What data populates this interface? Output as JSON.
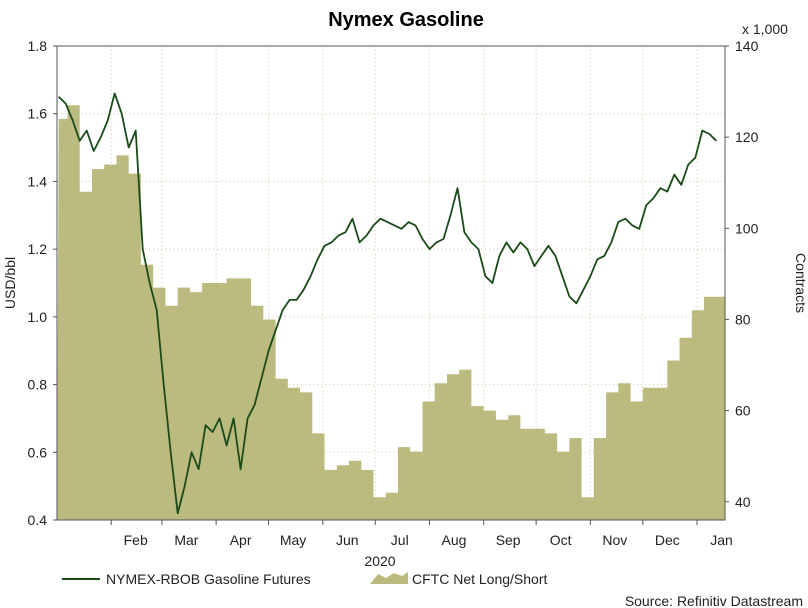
{
  "chart_data": {
    "type": "line",
    "title": "Nymex Gasoline",
    "ylabel_left": "USD/bbl",
    "ylabel_right": "Contracts",
    "right_unit_label": "x 1,000",
    "xlabel": "2020",
    "x_ticks": [
      "Feb",
      "Mar",
      "Apr",
      "May",
      "Jun",
      "Jul",
      "Aug",
      "Sep",
      "Oct",
      "Nov",
      "Dec",
      "Jan"
    ],
    "ylim_left": [
      0.4,
      1.8
    ],
    "yticks_left": [
      "0.4",
      "0.6",
      "0.8",
      "1.0",
      "1.2",
      "1.4",
      "1.6",
      "1.8"
    ],
    "ylim_right": [
      36.0,
      140.0
    ],
    "yticks_right": [
      "40",
      "60",
      "80",
      "100",
      "120",
      "140"
    ],
    "grid": true,
    "legend_position": "bottom",
    "source": "Source: Refinitiv Datastream",
    "colors": {
      "line": "#1b4a1b",
      "area": "#bcbb7f",
      "grid": "#c8c8a0"
    },
    "series": [
      {
        "name": "NYMEX-RBOB Gasoline Futures",
        "kind": "line",
        "axis": "left",
        "x": [
          "2020-01-02",
          "2020-01-06",
          "2020-01-10",
          "2020-01-14",
          "2020-01-18",
          "2020-01-22",
          "2020-01-26",
          "2020-01-30",
          "2020-02-03",
          "2020-02-07",
          "2020-02-11",
          "2020-02-15",
          "2020-02-19",
          "2020-02-23",
          "2020-02-27",
          "2020-03-02",
          "2020-03-06",
          "2020-03-10",
          "2020-03-14",
          "2020-03-18",
          "2020-03-22",
          "2020-03-26",
          "2020-03-30",
          "2020-04-03",
          "2020-04-07",
          "2020-04-11",
          "2020-04-15",
          "2020-04-19",
          "2020-04-23",
          "2020-04-27",
          "2020-05-01",
          "2020-05-05",
          "2020-05-09",
          "2020-05-13",
          "2020-05-17",
          "2020-05-21",
          "2020-05-25",
          "2020-05-29",
          "2020-06-02",
          "2020-06-06",
          "2020-06-10",
          "2020-06-14",
          "2020-06-18",
          "2020-06-22",
          "2020-06-26",
          "2020-06-30",
          "2020-07-04",
          "2020-07-08",
          "2020-07-12",
          "2020-07-16",
          "2020-07-20",
          "2020-07-24",
          "2020-07-28",
          "2020-08-01",
          "2020-08-05",
          "2020-08-09",
          "2020-08-13",
          "2020-08-17",
          "2020-08-21",
          "2020-08-25",
          "2020-08-29",
          "2020-09-02",
          "2020-09-06",
          "2020-09-10",
          "2020-09-14",
          "2020-09-18",
          "2020-09-22",
          "2020-09-26",
          "2020-09-30",
          "2020-10-04",
          "2020-10-08",
          "2020-10-12",
          "2020-10-16",
          "2020-10-20",
          "2020-10-24",
          "2020-10-28",
          "2020-11-01",
          "2020-11-05",
          "2020-11-09",
          "2020-11-13",
          "2020-11-17",
          "2020-11-21",
          "2020-11-25",
          "2020-11-29",
          "2020-12-03",
          "2020-12-07",
          "2020-12-11",
          "2020-12-15",
          "2020-12-19",
          "2020-12-23",
          "2020-12-27",
          "2020-12-31",
          "2021-01-04",
          "2021-01-08",
          "2021-01-12"
        ],
        "values": [
          1.65,
          1.63,
          1.58,
          1.52,
          1.55,
          1.49,
          1.53,
          1.58,
          1.66,
          1.6,
          1.5,
          1.55,
          1.2,
          1.1,
          1.02,
          0.8,
          0.6,
          0.42,
          0.5,
          0.6,
          0.55,
          0.68,
          0.66,
          0.7,
          0.62,
          0.7,
          0.55,
          0.7,
          0.74,
          0.82,
          0.9,
          0.96,
          1.02,
          1.05,
          1.05,
          1.08,
          1.12,
          1.17,
          1.21,
          1.22,
          1.24,
          1.25,
          1.29,
          1.22,
          1.24,
          1.27,
          1.29,
          1.28,
          1.27,
          1.26,
          1.28,
          1.27,
          1.23,
          1.2,
          1.22,
          1.23,
          1.3,
          1.38,
          1.25,
          1.22,
          1.2,
          1.12,
          1.1,
          1.18,
          1.22,
          1.19,
          1.22,
          1.2,
          1.15,
          1.18,
          1.21,
          1.18,
          1.12,
          1.06,
          1.04,
          1.08,
          1.12,
          1.17,
          1.18,
          1.22,
          1.28,
          1.29,
          1.27,
          1.26,
          1.33,
          1.35,
          1.38,
          1.37,
          1.42,
          1.39,
          1.45,
          1.47,
          1.55,
          1.54,
          1.52
        ]
      },
      {
        "name": "CFTC Net Long/Short",
        "kind": "area",
        "axis": "right",
        "x": [
          "2020-01-02",
          "2020-01-07",
          "2020-01-14",
          "2020-01-21",
          "2020-01-28",
          "2020-02-04",
          "2020-02-11",
          "2020-02-18",
          "2020-02-25",
          "2020-03-03",
          "2020-03-10",
          "2020-03-17",
          "2020-03-24",
          "2020-03-31",
          "2020-04-07",
          "2020-04-14",
          "2020-04-21",
          "2020-04-28",
          "2020-05-05",
          "2020-05-12",
          "2020-05-19",
          "2020-05-26",
          "2020-06-02",
          "2020-06-09",
          "2020-06-16",
          "2020-06-23",
          "2020-06-30",
          "2020-07-07",
          "2020-07-14",
          "2020-07-21",
          "2020-07-28",
          "2020-08-04",
          "2020-08-11",
          "2020-08-18",
          "2020-08-25",
          "2020-09-01",
          "2020-09-08",
          "2020-09-15",
          "2020-09-22",
          "2020-09-29",
          "2020-10-06",
          "2020-10-13",
          "2020-10-20",
          "2020-10-27",
          "2020-11-03",
          "2020-11-10",
          "2020-11-17",
          "2020-11-24",
          "2020-12-01",
          "2020-12-08",
          "2020-12-15",
          "2020-12-22",
          "2020-12-29",
          "2021-01-05",
          "2021-01-12"
        ],
        "values": [
          124,
          127,
          108,
          113,
          114,
          116,
          112,
          92,
          87,
          83,
          87,
          86,
          88,
          88,
          89,
          89,
          83,
          80,
          67,
          65,
          64,
          55,
          47,
          48,
          49,
          47,
          41,
          42,
          52,
          51,
          62,
          66,
          68,
          69,
          61,
          60,
          58,
          59,
          56,
          56,
          55,
          51,
          54,
          41,
          54,
          64,
          66,
          62,
          65,
          65,
          71,
          76,
          82,
          85,
          85
        ]
      }
    ]
  }
}
